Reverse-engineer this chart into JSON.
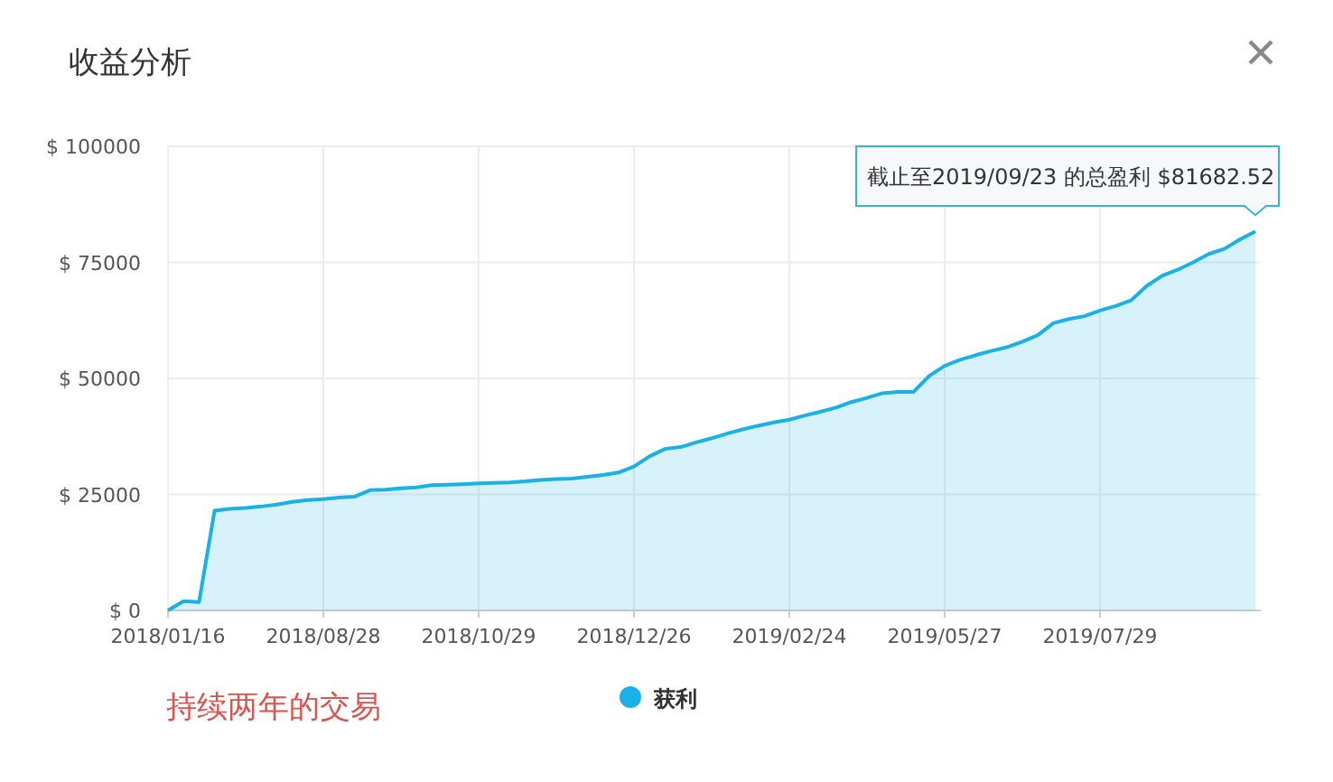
{
  "chart_data": {
    "type": "area",
    "title": "收益分析",
    "categories": [
      "2018/01/16",
      null,
      null,
      null,
      null,
      null,
      null,
      null,
      null,
      null,
      "2018/08/28",
      null,
      null,
      null,
      null,
      null,
      null,
      null,
      null,
      null,
      "2018/10/29",
      null,
      null,
      null,
      null,
      null,
      null,
      null,
      null,
      null,
      "2018/12/26",
      null,
      null,
      null,
      null,
      null,
      null,
      null,
      null,
      null,
      "2019/02/24",
      null,
      null,
      null,
      null,
      null,
      null,
      null,
      null,
      null,
      "2019/05/27",
      null,
      null,
      null,
      null,
      null,
      null,
      null,
      null,
      null,
      "2019/07/29",
      null,
      null,
      null,
      null,
      null,
      null,
      null,
      null,
      null,
      null
    ],
    "series": [
      {
        "name": "获利",
        "color": "#1ab0e8",
        "values": [
          0,
          2000,
          1800,
          21500,
          21900,
          22100,
          22400,
          22800,
          23400,
          23800,
          24000,
          24300,
          24500,
          25900,
          26000,
          26300,
          26500,
          27000,
          27100,
          27200,
          27400,
          27500,
          27600,
          27800,
          28100,
          28300,
          28400,
          28800,
          29200,
          29700,
          31000,
          33200,
          34800,
          35200,
          36200,
          37100,
          38100,
          39000,
          39800,
          40500,
          41100,
          42000,
          42800,
          43700,
          44900,
          45800,
          46800,
          47100,
          47100,
          50500,
          52700,
          54000,
          55000,
          55900,
          56700,
          57900,
          59300,
          61900,
          62800,
          63400,
          64600,
          65600,
          66800,
          69900,
          72100,
          73400,
          75000,
          76800,
          77900,
          79900,
          81682.52
        ]
      }
    ],
    "ylim": [
      0,
      100000
    ],
    "yticks": [
      {
        "value": 0,
        "label": "$ 0"
      },
      {
        "value": 25000,
        "label": "$ 25000"
      },
      {
        "value": 50000,
        "label": "$ 50000"
      },
      {
        "value": 75000,
        "label": "$ 75000"
      },
      {
        "value": 100000,
        "label": "$ 100000"
      }
    ],
    "grid": true,
    "legend": "bottom",
    "annotations": [
      "截止至2019/09/23 的总盈利 $81682.52",
      "持续两年的交易"
    ]
  }
}
